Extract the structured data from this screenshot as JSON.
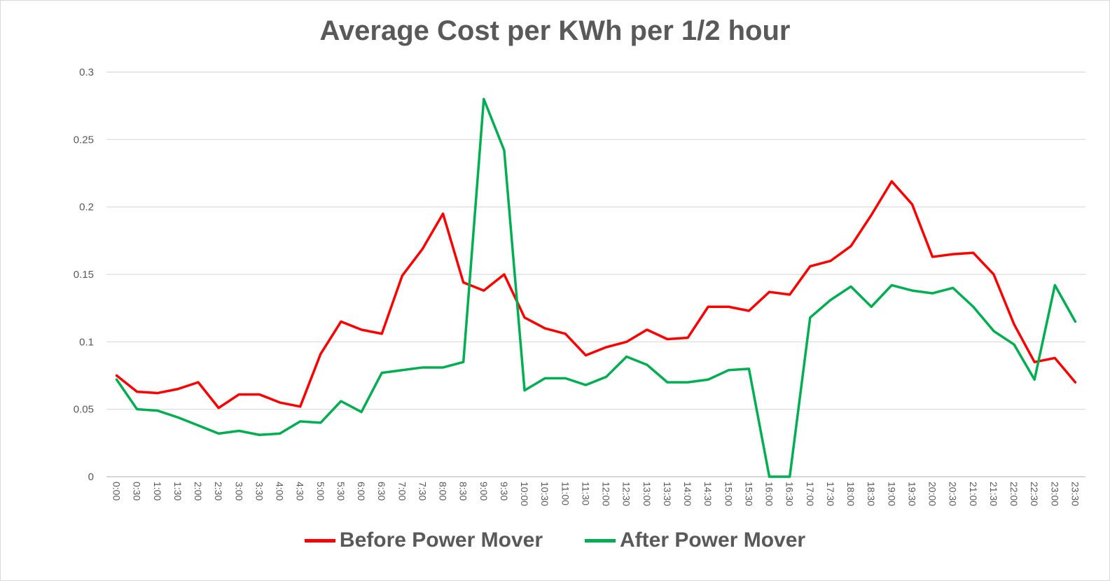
{
  "chart_data": {
    "type": "line",
    "title": "Average Cost per KWh per 1/2 hour",
    "xlabel": "",
    "ylabel": "",
    "ylim": [
      0,
      0.3
    ],
    "yticks": [
      "0",
      "0.05",
      "0.1",
      "0.15",
      "0.2",
      "0.25",
      "0.3"
    ],
    "grid": true,
    "legend": "bottom",
    "categories": [
      "0:00",
      "0:30",
      "1:00",
      "1:30",
      "2:00",
      "2:30",
      "3:00",
      "3:30",
      "4:00",
      "4:30",
      "5:00",
      "5:30",
      "6:00",
      "6:30",
      "7:00",
      "7:30",
      "8:00",
      "8:30",
      "9:00",
      "9:30",
      "10:00",
      "10:30",
      "11:00",
      "11:30",
      "12:00",
      "12:30",
      "13:00",
      "13:30",
      "14:00",
      "14:30",
      "15:00",
      "15:30",
      "16:00",
      "16:30",
      "17:00",
      "17:30",
      "18:00",
      "18:30",
      "19:00",
      "19:30",
      "20:00",
      "20:30",
      "21:00",
      "21:30",
      "22:00",
      "22:30",
      "23:00",
      "23:30"
    ],
    "series": [
      {
        "name": "Before Power Mover",
        "color": "#ff0000",
        "values": [
          0.075,
          0.063,
          0.062,
          0.065,
          0.07,
          0.051,
          0.061,
          0.061,
          0.055,
          0.052,
          0.091,
          0.115,
          0.109,
          0.106,
          0.149,
          0.169,
          0.195,
          0.144,
          0.138,
          0.15,
          0.118,
          0.11,
          0.106,
          0.09,
          0.096,
          0.1,
          0.109,
          0.102,
          0.103,
          0.126,
          0.126,
          0.123,
          0.137,
          0.135,
          0.156,
          0.16,
          0.171,
          0.194,
          0.219,
          0.202,
          0.163,
          0.165,
          0.166,
          0.15,
          0.113,
          0.085,
          0.088,
          0.07
        ]
      },
      {
        "name": "After Power Mover",
        "color": "#00b050",
        "values": [
          0.072,
          0.05,
          0.049,
          0.044,
          0.038,
          0.032,
          0.034,
          0.031,
          0.032,
          0.041,
          0.04,
          0.056,
          0.048,
          0.077,
          0.079,
          0.081,
          0.081,
          0.085,
          0.28,
          0.242,
          0.064,
          0.073,
          0.073,
          0.068,
          0.074,
          0.089,
          0.083,
          0.07,
          0.07,
          0.072,
          0.079,
          0.08,
          0.0,
          0.0,
          0.118,
          0.131,
          0.141,
          0.126,
          0.142,
          0.138,
          0.136,
          0.14,
          0.126,
          0.108,
          0.098,
          0.072,
          0.142,
          0.115
        ]
      }
    ]
  }
}
